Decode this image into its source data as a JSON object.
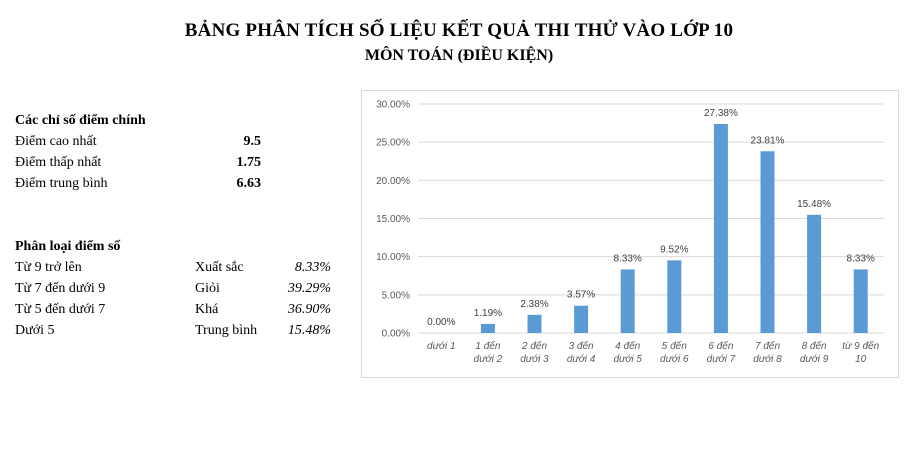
{
  "header": {
    "title": "BẢNG PHÂN TÍCH SỐ LIỆU KẾT QUẢ THI THỬ VÀO LỚP 10",
    "subtitle": "MÔN TOÁN (ĐIỀU KIỆN)"
  },
  "key_stats": {
    "heading": "Các chỉ số điểm chính",
    "rows": [
      {
        "label": "Điểm cao nhất",
        "value": "9.5"
      },
      {
        "label": "Điểm thấp nhất",
        "value": "1.75"
      },
      {
        "label": "Điểm trung bình",
        "value": "6.63"
      }
    ]
  },
  "classification": {
    "heading": "Phân loại điểm số",
    "rows": [
      {
        "range": "Từ 9 trở lên",
        "rank": "Xuất sắc",
        "percent": "8.33%"
      },
      {
        "range": "Từ 7 đến dưới 9",
        "rank": "Giỏi",
        "percent": "39.29%"
      },
      {
        "range": "Từ 5 đến dưới 7",
        "rank": "Khá",
        "percent": "36.90%"
      },
      {
        "range": "Dưới 5",
        "rank": "Trung bình",
        "percent": "15.48%"
      }
    ]
  },
  "chart_data": {
    "type": "bar",
    "title": "",
    "xlabel": "",
    "ylabel": "",
    "categories": [
      [
        "dưới 1"
      ],
      [
        "1 đến",
        "dưới 2"
      ],
      [
        "2 đến",
        "dưới 3"
      ],
      [
        "3 đến",
        "dưới 4"
      ],
      [
        "4 đến",
        "dưới 5"
      ],
      [
        "5 đến",
        "dưới 6"
      ],
      [
        "6 đến",
        "dưới 7"
      ],
      [
        "7 đến",
        "dưới 8"
      ],
      [
        "8 đến",
        "dưới 9"
      ],
      [
        "từ 9 đến",
        "10"
      ]
    ],
    "values": [
      0.0,
      1.19,
      2.38,
      3.57,
      8.33,
      9.52,
      27.38,
      23.81,
      15.48,
      8.33
    ],
    "data_labels": [
      "0.00%",
      "1.19%",
      "2.38%",
      "3.57%",
      "8.33%",
      "9.52%",
      "27.38%",
      "23.81%",
      "15.48%",
      "8.33%"
    ],
    "yticks": [
      "0.00%",
      "5.00%",
      "10.00%",
      "15.00%",
      "20.00%",
      "25.00%",
      "30.00%"
    ],
    "ylim": [
      0,
      30
    ],
    "grid": true,
    "legend": "none",
    "bar_color": "#5b9bd5",
    "grid_color": "#d9d9d9"
  }
}
